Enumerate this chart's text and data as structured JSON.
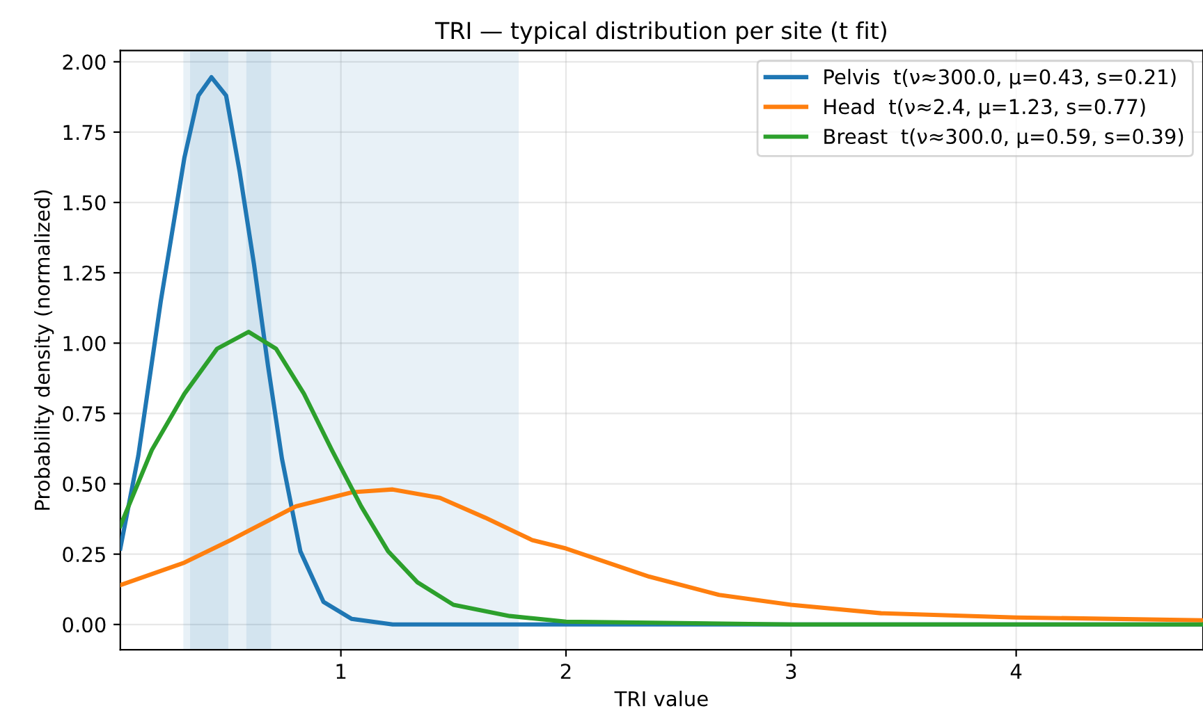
{
  "chart_data": {
    "type": "line",
    "title": "TRI — typical distribution per site (t fit)",
    "xlabel": "TRI value",
    "ylabel": "Probability density (normalized)",
    "xlim": [
      0.02,
      4.83
    ],
    "xticks": [
      1,
      2,
      3,
      4
    ],
    "ylim": [
      -0.09,
      2.04
    ],
    "yticks": [
      {
        "value": 0,
        "label": "0.00"
      },
      0.25,
      {
        "value": 0.5,
        "label": "0.50"
      },
      0.75,
      {
        "value": 1,
        "label": "1.00"
      },
      1.25,
      {
        "value": 1.5,
        "label": "1.50"
      },
      1.75,
      {
        "value": 2,
        "label": "2.00"
      }
    ],
    "grid": true,
    "legend": "top right",
    "bands": [
      {
        "axis": "x",
        "from": 0.3,
        "to": 1.79,
        "color": "#1f77b4"
      },
      {
        "axis": "x",
        "from": 0.33,
        "to": 0.5,
        "color": "#1f77b4"
      },
      {
        "axis": "x",
        "from": 0.58,
        "to": 0.69,
        "color": "#1f77b4"
      }
    ],
    "series": [
      {
        "name": "Pelvis  t(ν≈300.0, μ=0.43, s=0.21)",
        "color": "#1f77b4",
        "x": [
          0.02,
          0.1,
          0.2,
          0.305,
          0.367,
          0.425,
          0.49,
          0.55,
          0.614,
          0.676,
          0.738,
          0.82,
          0.923,
          1.047,
          1.23,
          1.5,
          2.0,
          3.0,
          4.0,
          4.83
        ],
        "values": [
          0.27,
          0.6,
          1.15,
          1.66,
          1.88,
          1.945,
          1.88,
          1.61,
          1.28,
          0.92,
          0.59,
          0.26,
          0.08,
          0.02,
          0.0,
          0.0,
          0.0,
          0.0,
          0.0,
          0.0
        ]
      },
      {
        "name": "Head  t(ν≈2.4, μ=1.23, s=0.77)",
        "color": "#ff7f0e",
        "x": [
          0.02,
          0.305,
          0.51,
          0.8,
          1.05,
          1.23,
          1.44,
          1.64,
          1.85,
          2.0,
          2.37,
          2.68,
          3.0,
          3.4,
          4.0,
          4.83
        ],
        "values": [
          0.14,
          0.22,
          0.3,
          0.42,
          0.47,
          0.48,
          0.45,
          0.38,
          0.3,
          0.27,
          0.17,
          0.105,
          0.07,
          0.04,
          0.025,
          0.015
        ]
      },
      {
        "name": "Breast  t(ν≈300.0, μ=0.59, s=0.39)",
        "color": "#2ca02c",
        "x": [
          0.02,
          0.16,
          0.305,
          0.45,
          0.59,
          0.712,
          0.836,
          0.96,
          1.09,
          1.21,
          1.34,
          1.5,
          1.75,
          2.0,
          3.0,
          4.0,
          4.83
        ],
        "values": [
          0.35,
          0.62,
          0.82,
          0.98,
          1.04,
          0.98,
          0.82,
          0.62,
          0.42,
          0.26,
          0.15,
          0.07,
          0.03,
          0.01,
          0.0,
          0.0,
          0.0
        ]
      }
    ]
  }
}
